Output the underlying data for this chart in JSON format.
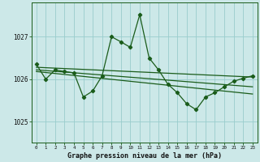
{
  "background_color": "#cce8e8",
  "grid_color": "#99cccc",
  "line_color": "#1a5c1a",
  "title": "Graphe pression niveau de la mer (hPa)",
  "xlim": [
    -0.5,
    23.5
  ],
  "ylim": [
    1024.5,
    1027.8
  ],
  "yticks": [
    1025,
    1026,
    1027
  ],
  "xticks": [
    0,
    1,
    2,
    3,
    4,
    5,
    6,
    7,
    8,
    9,
    10,
    11,
    12,
    13,
    14,
    15,
    16,
    17,
    18,
    19,
    20,
    21,
    22,
    23
  ],
  "main_x": [
    0,
    1,
    2,
    3,
    4,
    5,
    6,
    7,
    8,
    9,
    10,
    11,
    12,
    13,
    14,
    15,
    16,
    17,
    18,
    19,
    20,
    21,
    22,
    23
  ],
  "main_y": [
    1026.35,
    1026.0,
    1026.22,
    1026.18,
    1026.15,
    1025.58,
    1025.72,
    1026.08,
    1027.0,
    1026.88,
    1026.75,
    1027.52,
    1026.5,
    1026.22,
    1025.88,
    1025.68,
    1025.42,
    1025.28,
    1025.58,
    1025.68,
    1025.82,
    1025.95,
    1026.02,
    1026.08
  ],
  "trend1_x": [
    0,
    23
  ],
  "trend1_y": [
    1026.28,
    1026.05
  ],
  "trend2_x": [
    0,
    23
  ],
  "trend2_y": [
    1026.22,
    1025.82
  ],
  "trend3_x": [
    0,
    23
  ],
  "trend3_y": [
    1026.18,
    1025.65
  ]
}
